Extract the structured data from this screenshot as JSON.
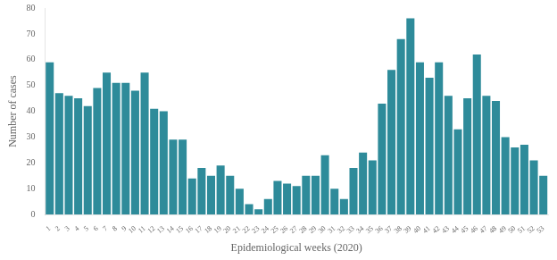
{
  "chart_data": {
    "type": "bar",
    "categories": [
      1,
      2,
      3,
      4,
      5,
      6,
      7,
      8,
      9,
      10,
      11,
      12,
      13,
      14,
      15,
      16,
      17,
      18,
      19,
      20,
      21,
      22,
      23,
      24,
      25,
      26,
      27,
      28,
      29,
      30,
      31,
      32,
      33,
      34,
      35,
      36,
      37,
      38,
      39,
      40,
      41,
      42,
      43,
      44,
      45,
      46,
      47,
      48,
      49,
      50,
      51,
      52,
      53
    ],
    "values": [
      59,
      47,
      46,
      45,
      42,
      49,
      55,
      51,
      51,
      48,
      55,
      41,
      40,
      29,
      29,
      14,
      18,
      15,
      19,
      15,
      10,
      4,
      2,
      6,
      13,
      12,
      11,
      15,
      15,
      23,
      10,
      6,
      18,
      24,
      21,
      43,
      56,
      68,
      76,
      59,
      53,
      59,
      46,
      33,
      45,
      62,
      46,
      44,
      30,
      26,
      27,
      21,
      15
    ],
    "color": "#2e8b9a",
    "xlabel": "Epidemiological weeks (2020)",
    "ylabel": "Number of cases",
    "ylim": [
      0,
      80
    ],
    "yticks": [
      0,
      10,
      20,
      30,
      40,
      50,
      60,
      70,
      80
    ],
    "grid": false
  }
}
